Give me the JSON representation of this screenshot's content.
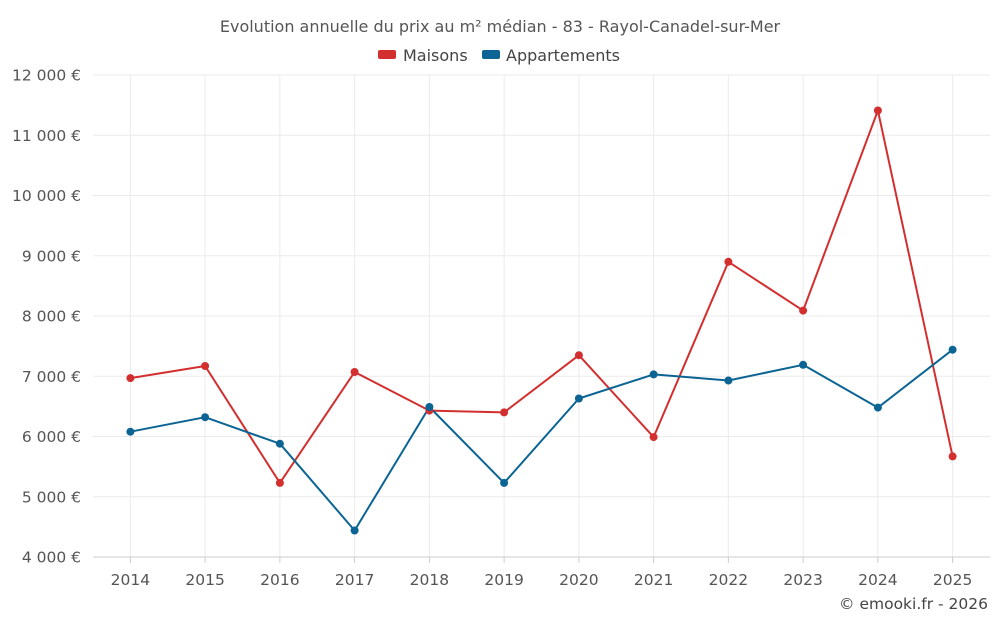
{
  "chart_data": {
    "type": "line",
    "title": "Evolution annuelle du prix au m² médian - 83 - Rayol-Canadel-sur-Mer",
    "categories": [
      "2014",
      "2015",
      "2016",
      "2017",
      "2018",
      "2019",
      "2020",
      "2021",
      "2022",
      "2023",
      "2024",
      "2025"
    ],
    "series": [
      {
        "name": "Maisons",
        "color": "#d32f2f",
        "values": [
          6970,
          7170,
          5230,
          7070,
          6430,
          6400,
          7350,
          5990,
          8900,
          8090,
          11410,
          5670
        ]
      },
      {
        "name": "Appartements",
        "color": "#0b6494",
        "values": [
          6080,
          6320,
          5880,
          4440,
          6490,
          5230,
          6630,
          7030,
          6930,
          7190,
          6480,
          7440
        ]
      }
    ],
    "ylim": [
      4000,
      12000
    ],
    "yticks": [
      4000,
      5000,
      6000,
      7000,
      8000,
      9000,
      10000,
      11000,
      12000
    ],
    "ytick_labels": [
      "4 000 €",
      "5 000 €",
      "6 000 €",
      "7 000 €",
      "8 000 €",
      "9 000 €",
      "10 000 €",
      "11 000 €",
      "12 000 €"
    ],
    "xlabel": "",
    "ylabel": "",
    "grid": true,
    "legend_position": "top-center"
  },
  "credit": "© emooki.fr - 2026"
}
